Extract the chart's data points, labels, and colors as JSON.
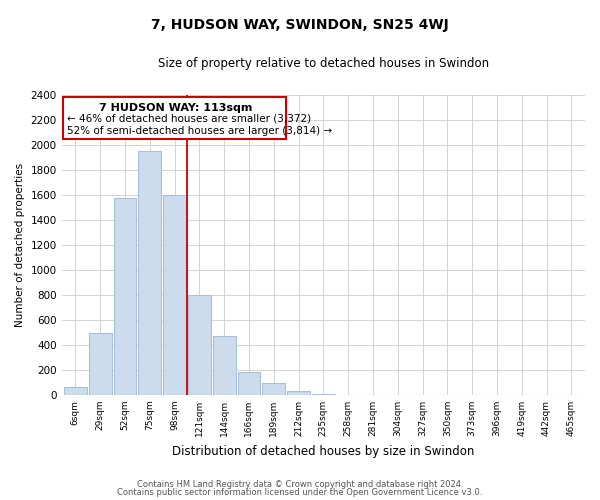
{
  "title": "7, HUDSON WAY, SWINDON, SN25 4WJ",
  "subtitle": "Size of property relative to detached houses in Swindon",
  "xlabel": "Distribution of detached houses by size in Swindon",
  "ylabel": "Number of detached properties",
  "bar_color": "#ccdcec",
  "bar_edge_color": "#a8c0d8",
  "categories": [
    "6sqm",
    "29sqm",
    "52sqm",
    "75sqm",
    "98sqm",
    "121sqm",
    "144sqm",
    "166sqm",
    "189sqm",
    "212sqm",
    "235sqm",
    "258sqm",
    "281sqm",
    "304sqm",
    "327sqm",
    "350sqm",
    "373sqm",
    "396sqm",
    "419sqm",
    "442sqm",
    "465sqm"
  ],
  "values": [
    60,
    500,
    1580,
    1950,
    1600,
    800,
    470,
    185,
    95,
    35,
    10,
    0,
    0,
    0,
    0,
    0,
    0,
    0,
    0,
    0,
    0
  ],
  "ylim": [
    0,
    2400
  ],
  "yticks": [
    0,
    200,
    400,
    600,
    800,
    1000,
    1200,
    1400,
    1600,
    1800,
    2000,
    2200,
    2400
  ],
  "vline_x": 4.5,
  "vline_color": "#cc0000",
  "annotation_title": "7 HUDSON WAY: 113sqm",
  "annotation_line1": "← 46% of detached houses are smaller (3,372)",
  "annotation_line2": "52% of semi-detached houses are larger (3,814) →",
  "footer1": "Contains HM Land Registry data © Crown copyright and database right 2024.",
  "footer2": "Contains public sector information licensed under the Open Government Licence v3.0.",
  "background_color": "#ffffff",
  "grid_color": "#cccccc"
}
